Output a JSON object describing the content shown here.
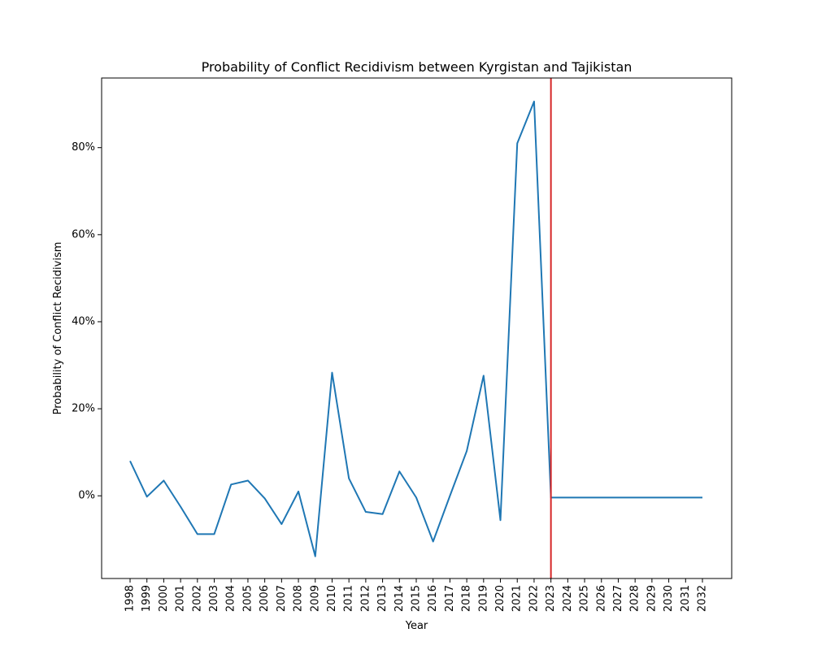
{
  "chart_data": {
    "type": "line",
    "title": "Probability of Conflict Recidivism between Kyrgistan and Tajikistan",
    "xlabel": "Year",
    "ylabel": "Probability of Conflict Recidivism",
    "categories": [
      "1998",
      "1999",
      "2000",
      "2001",
      "2002",
      "2003",
      "2004",
      "2005",
      "2006",
      "2007",
      "2008",
      "2009",
      "2010",
      "2011",
      "2012",
      "2013",
      "2014",
      "2015",
      "2016",
      "2017",
      "2018",
      "2019",
      "2020",
      "2021",
      "2022",
      "2023",
      "2024",
      "2025",
      "2026",
      "2027",
      "2028",
      "2029",
      "2030",
      "2031",
      "2032"
    ],
    "y_ticks": [
      {
        "value": 0,
        "label": "0%"
      },
      {
        "value": 20,
        "label": "20%"
      },
      {
        "value": 40,
        "label": "40%"
      },
      {
        "value": 60,
        "label": "60%"
      },
      {
        "value": 80,
        "label": "80%"
      }
    ],
    "ylim": [
      -19,
      96
    ],
    "series": [
      {
        "color": "#1f77b4",
        "values": [
          8.0,
          -0.2,
          3.5,
          -2.5,
          -8.8,
          -8.8,
          2.6,
          3.5,
          -0.6,
          -6.5,
          1.0,
          -13.9,
          28.3,
          4.0,
          -3.7,
          -4.2,
          5.6,
          -0.4,
          -10.5,
          0.0,
          10.3,
          27.6,
          -5.6,
          81.0,
          90.6,
          -0.4,
          -0.4,
          -0.4,
          -0.4,
          -0.4,
          -0.4,
          -0.4,
          -0.4,
          -0.4,
          -0.4
        ]
      }
    ],
    "vline": {
      "x": "2023",
      "color": "#d62728"
    },
    "grid": false,
    "legend": "none"
  }
}
